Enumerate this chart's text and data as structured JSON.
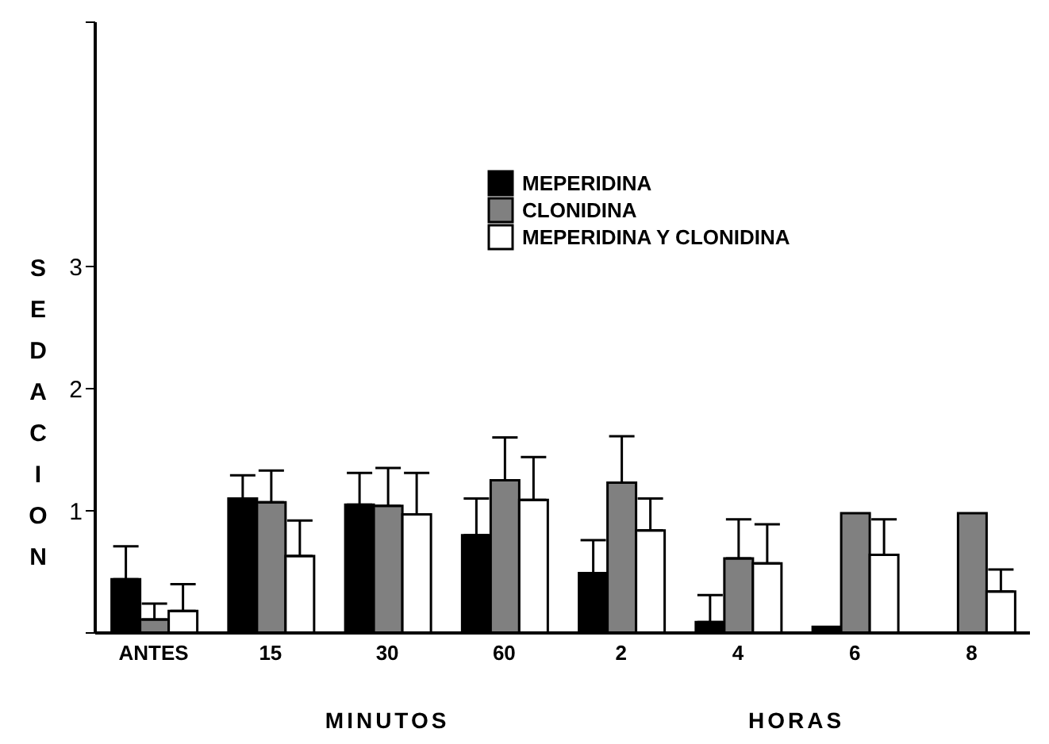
{
  "chart_data": {
    "type": "bar",
    "ylabel": "SEDACION",
    "categories": [
      "ANTES",
      "15",
      "30",
      "60",
      "2",
      "4",
      "6",
      "8"
    ],
    "series": [
      {
        "name": "MEPERIDINA",
        "color": "#000000",
        "values": [
          0.44,
          1.1,
          1.05,
          0.8,
          0.49,
          0.09,
          0.05,
          null
        ],
        "errors": [
          [
            0.44,
            0.71
          ],
          [
            1.1,
            1.29
          ],
          [
            1.05,
            1.31
          ],
          [
            0.8,
            1.1
          ],
          [
            0.49,
            0.76
          ],
          [
            0.09,
            0.31
          ],
          null,
          null
        ]
      },
      {
        "name": "CLONIDINA",
        "color": "#808080",
        "values": [
          0.11,
          1.07,
          1.04,
          1.25,
          1.23,
          0.61,
          0.98,
          0.98
        ],
        "errors": [
          [
            0.11,
            0.24
          ],
          [
            1.07,
            1.33
          ],
          [
            1.04,
            1.35
          ],
          [
            1.25,
            1.6
          ],
          [
            1.23,
            1.61
          ],
          [
            0.61,
            0.93
          ],
          null,
          null
        ]
      },
      {
        "name": "MEPERIDINA Y CLONIDINA",
        "color": "#ffffff",
        "values": [
          0.18,
          0.63,
          0.97,
          1.09,
          0.84,
          0.57,
          0.64,
          0.34
        ],
        "errors": [
          [
            0.18,
            0.4
          ],
          [
            0.63,
            0.92
          ],
          [
            0.97,
            1.31
          ],
          [
            1.09,
            1.44
          ],
          [
            0.84,
            1.1
          ],
          [
            0.57,
            0.89
          ],
          [
            0.64,
            0.93
          ],
          [
            0.34,
            0.52
          ]
        ]
      }
    ],
    "ylim": [
      0,
      5
    ],
    "yticks": [
      {
        "value": 0,
        "label": null
      },
      1,
      2,
      3,
      {
        "value": 5,
        "label": null
      }
    ],
    "legend": "top",
    "annotations": [
      "MINUTOS",
      "HORAS"
    ]
  }
}
